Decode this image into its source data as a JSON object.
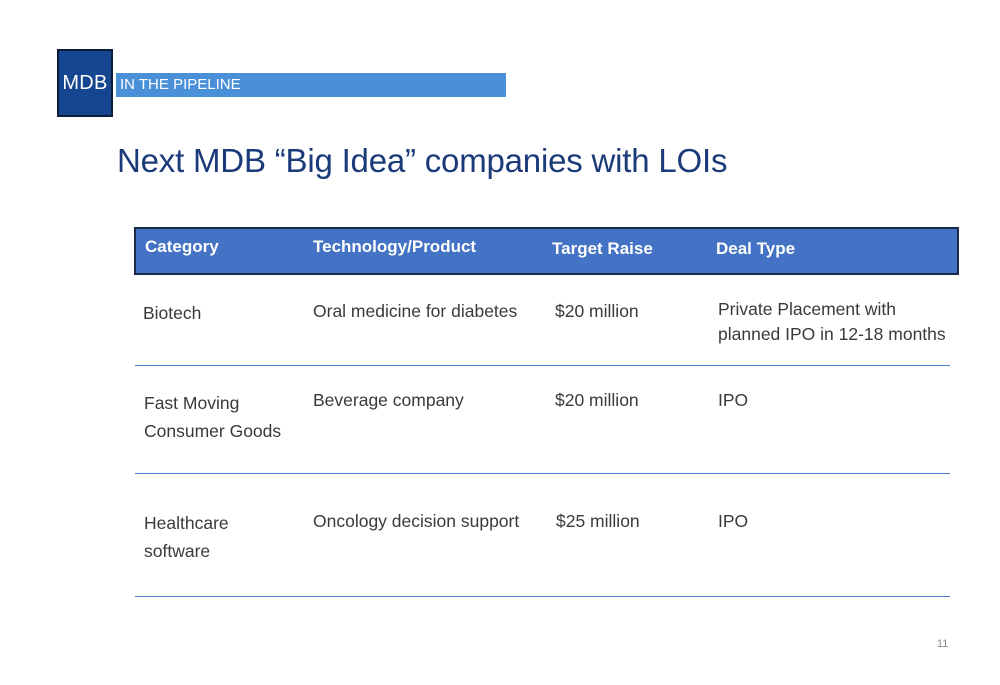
{
  "logo": {
    "text": "MDB"
  },
  "section_label": "IN THE PIPELINE",
  "title": "Next MDB “Big Idea” companies with LOIs",
  "table": {
    "headers": [
      "Category",
      "Technology/Product",
      "Target Raise",
      "Deal Type"
    ],
    "rows": [
      {
        "category": [
          "Biotech"
        ],
        "product": "Oral medicine for diabetes",
        "raise": "$20 million",
        "deal": [
          "Private Placement with",
          "planned IPO in 12-18 months"
        ]
      },
      {
        "category": [
          "Fast Moving",
          "Consumer Goods"
        ],
        "product": "Beverage company",
        "raise": "$20 million",
        "deal": [
          "IPO"
        ]
      },
      {
        "category": [
          "Healthcare",
          "software"
        ],
        "product": "Oncology decision support",
        "raise": "$25 million",
        "deal": [
          "IPO"
        ]
      }
    ]
  },
  "page_number": "11"
}
